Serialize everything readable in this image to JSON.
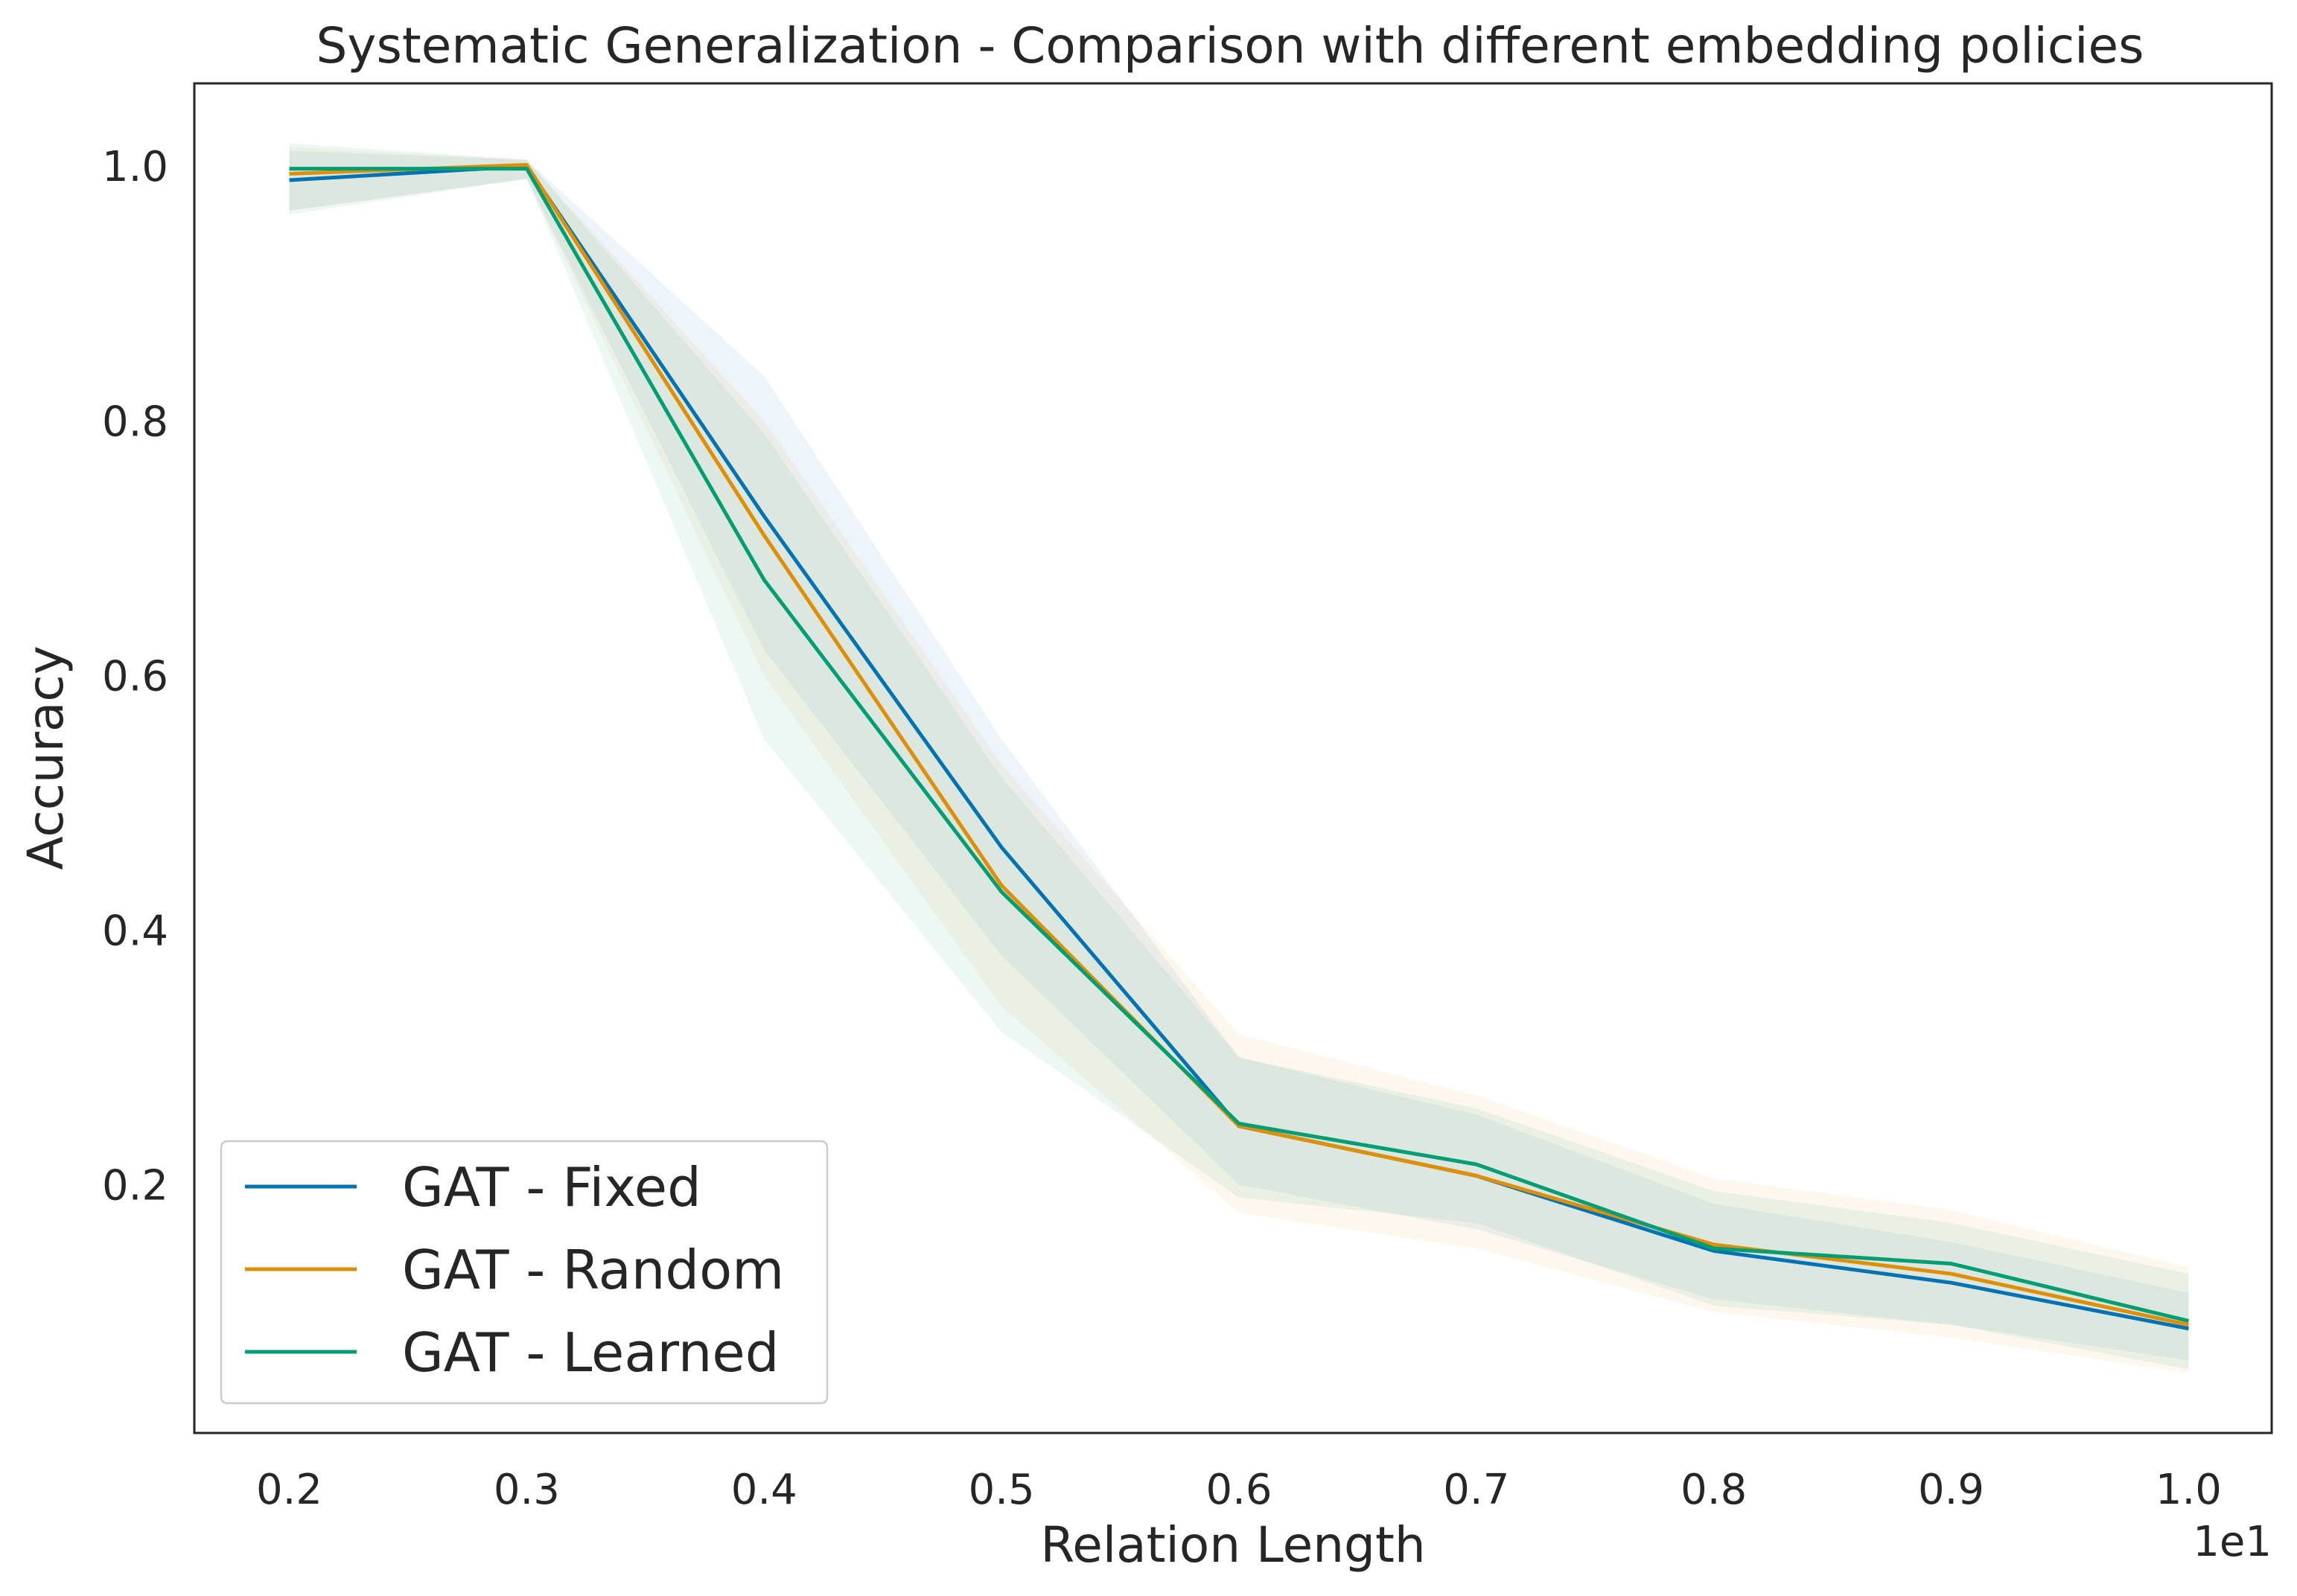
{
  "chart_data": {
    "type": "line",
    "title": "Systematic Generalization - Comparison with different embedding policies",
    "xlabel": "Relation Length",
    "ylabel": "Accuracy",
    "x_offset_label": "1e1",
    "x": [
      0.2,
      0.3,
      0.4,
      0.5,
      0.6,
      0.7,
      0.8,
      0.9,
      1.0
    ],
    "x_ticks": [
      "0.2",
      "0.3",
      "0.4",
      "0.5",
      "0.6",
      "0.7",
      "0.8",
      "0.9",
      "1.0"
    ],
    "y_ticks": [
      "0.2",
      "0.4",
      "0.6",
      "0.8",
      "1.0"
    ],
    "y_tick_values": [
      0.2,
      0.4,
      0.6,
      0.8,
      1.0
    ],
    "xlim": [
      0.16,
      1.035
    ],
    "ylim": [
      0.005,
      1.065
    ],
    "legend_position": "lower-left",
    "series": [
      {
        "name": "GAT - Fixed",
        "color": "#0173b2",
        "values": [
          0.989,
          1.0,
          0.725,
          0.465,
          0.246,
          0.207,
          0.148,
          0.123,
          0.087
        ],
        "lower": [
          0.965,
          0.99,
          0.62,
          0.38,
          0.2,
          0.165,
          0.11,
          0.09,
          0.062
        ],
        "upper": [
          1.012,
          1.005,
          0.835,
          0.55,
          0.3,
          0.255,
          0.185,
          0.155,
          0.115
        ]
      },
      {
        "name": "GAT - Random",
        "color": "#de8f05",
        "values": [
          0.994,
          1.001,
          0.71,
          0.435,
          0.246,
          0.207,
          0.153,
          0.13,
          0.09
        ],
        "lower": [
          0.965,
          0.99,
          0.6,
          0.34,
          0.178,
          0.15,
          0.1,
          0.08,
          0.052
        ],
        "upper": [
          1.015,
          1.005,
          0.8,
          0.53,
          0.318,
          0.27,
          0.205,
          0.18,
          0.135
        ]
      },
      {
        "name": "GAT - Learned",
        "color": "#029e73",
        "values": [
          0.998,
          0.998,
          0.675,
          0.43,
          0.248,
          0.216,
          0.15,
          0.138,
          0.093
        ],
        "lower": [
          0.962,
          0.99,
          0.55,
          0.32,
          0.19,
          0.17,
          0.105,
          0.09,
          0.055
        ],
        "upper": [
          1.018,
          1.005,
          0.79,
          0.52,
          0.3,
          0.26,
          0.195,
          0.17,
          0.13
        ]
      }
    ]
  }
}
